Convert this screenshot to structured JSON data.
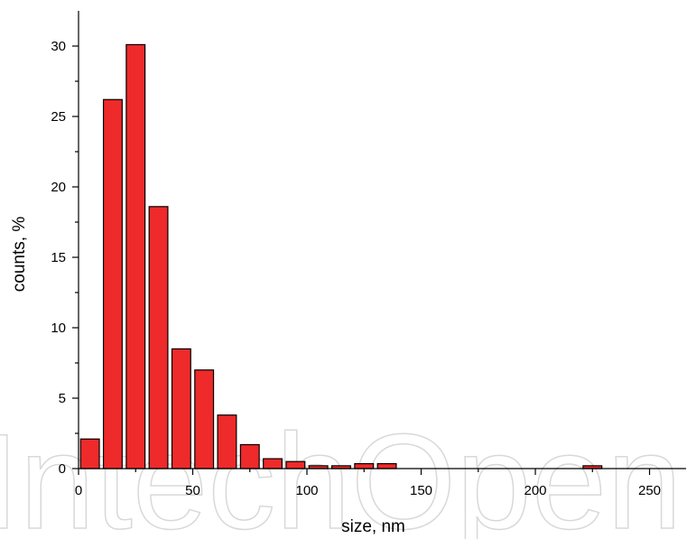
{
  "chart_data": {
    "type": "bar",
    "title": "",
    "xlabel": "size, nm",
    "ylabel": "counts, %",
    "xlim": [
      0,
      266
    ],
    "ylim": [
      0,
      32.5
    ],
    "xticks": [
      "0",
      "50",
      "100",
      "150",
      "200",
      "250"
    ],
    "yticks": [
      "0",
      "5",
      "10",
      "15",
      "20",
      "25",
      "30"
    ],
    "bin_width": 10,
    "bar_color": "#ee2a2a",
    "bins": [
      {
        "center": 5,
        "value": 2.1
      },
      {
        "center": 15,
        "value": 26.2
      },
      {
        "center": 25,
        "value": 30.1
      },
      {
        "center": 35,
        "value": 18.6
      },
      {
        "center": 45,
        "value": 8.5
      },
      {
        "center": 55,
        "value": 7.0
      },
      {
        "center": 65,
        "value": 3.8
      },
      {
        "center": 75,
        "value": 1.7
      },
      {
        "center": 85,
        "value": 0.7
      },
      {
        "center": 95,
        "value": 0.5
      },
      {
        "center": 105,
        "value": 0.2
      },
      {
        "center": 115,
        "value": 0.2
      },
      {
        "center": 125,
        "value": 0.35
      },
      {
        "center": 135,
        "value": 0.35
      },
      {
        "center": 225,
        "value": 0.2
      }
    ],
    "grid": false,
    "legend": "none"
  },
  "watermark": {
    "text": "IntechOpen"
  }
}
